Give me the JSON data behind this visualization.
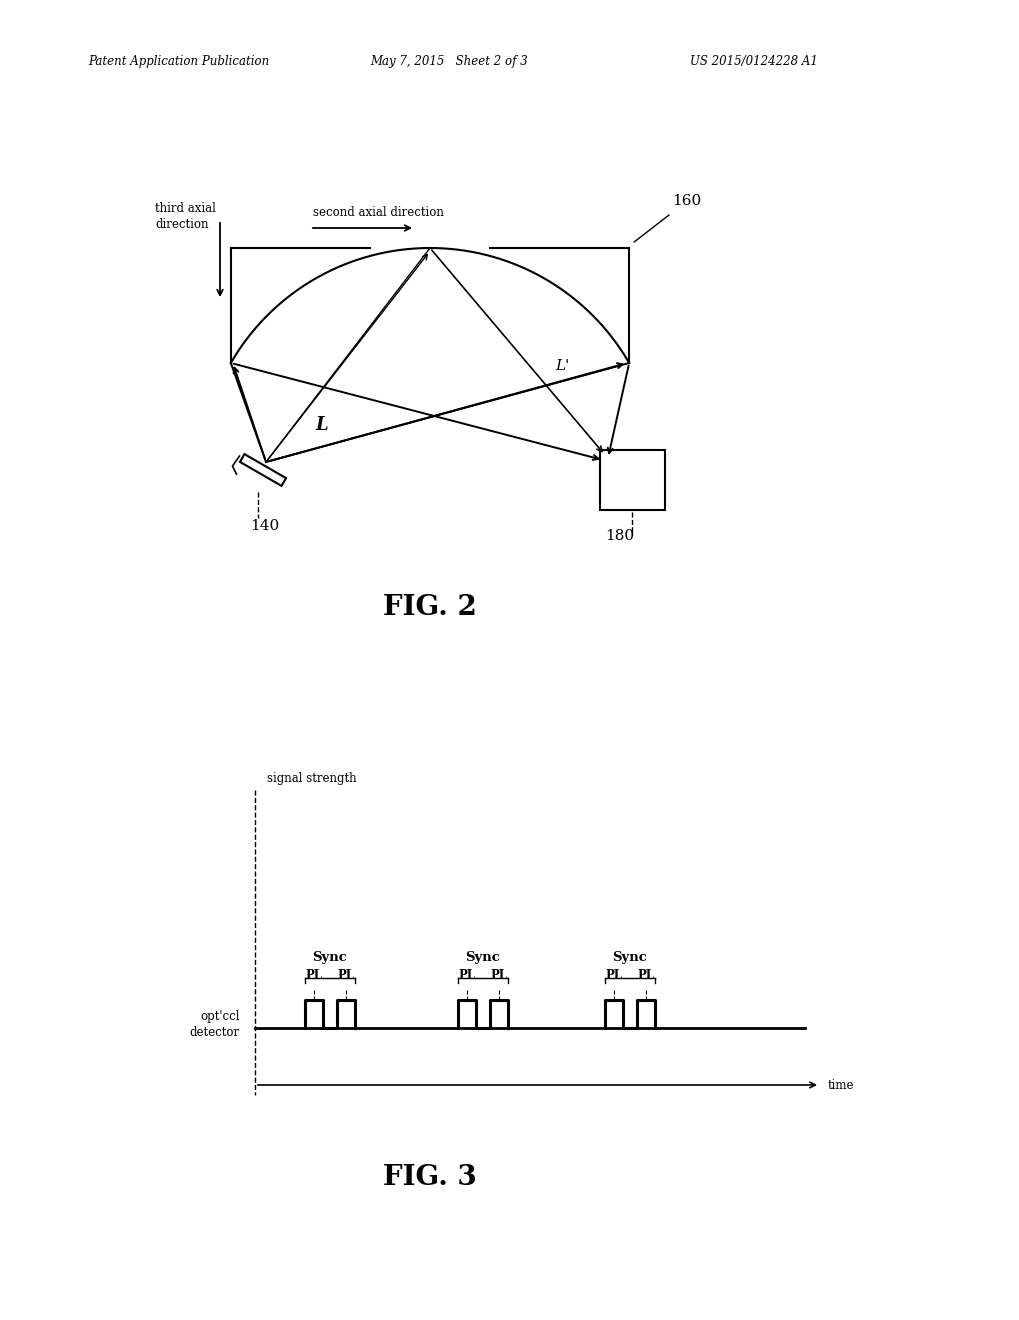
{
  "bg_color": "#ffffff",
  "header_left": "Patent Application Publication",
  "header_mid": "May 7, 2015   Sheet 2 of 3",
  "header_right": "US 2015/0124228 A1",
  "fig2_caption": "FIG. 2",
  "fig3_caption": "FIG. 3",
  "label_160": "160",
  "label_140": "140",
  "label_180": "180",
  "label_L": "L",
  "label_Lprime": "L'",
  "label_second_axial": "second axial direction",
  "label_third_axial": "third axial\ndirection",
  "label_signal_strength": "signal strength",
  "label_optical_detector": "opt'ccl\ndetector",
  "label_time": "time",
  "label_Sync": "Sync",
  "label_PL": "PL",
  "line_color": "#000000"
}
